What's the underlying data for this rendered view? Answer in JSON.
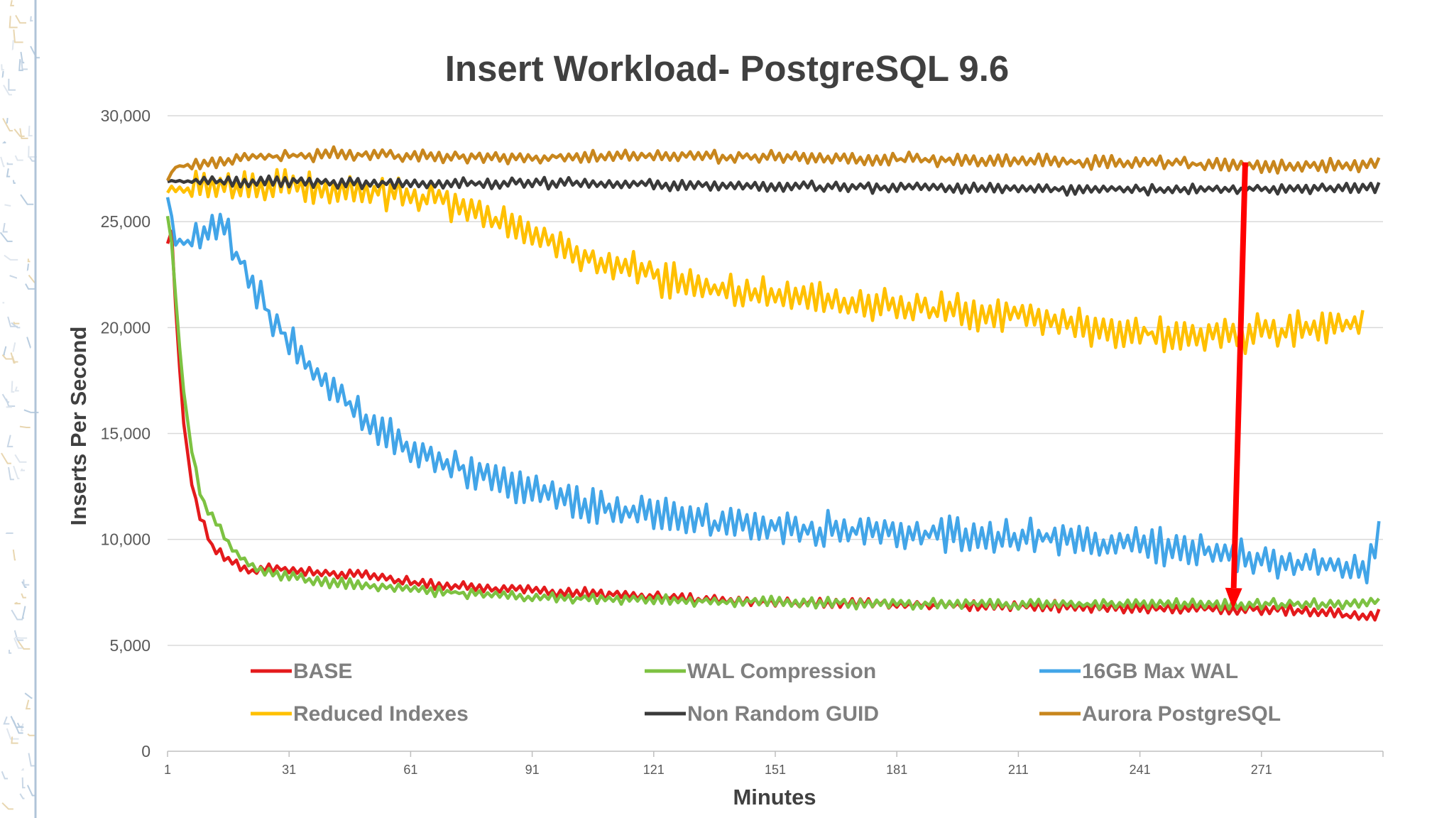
{
  "chart_data": {
    "type": "line",
    "title": "Insert Workload- PostgreSQL 9.6",
    "xlabel": "Minutes",
    "ylabel": "Inserts Per Second",
    "xlim": [
      1,
      301
    ],
    "ylim": [
      0,
      30000
    ],
    "x_ticks": [
      "1",
      "31",
      "61",
      "91",
      "121",
      "151",
      "181",
      "211",
      "241",
      "271"
    ],
    "y_ticks": [
      "0",
      "5,000",
      "10,000",
      "15,000",
      "20,000",
      "25,000",
      "30,000"
    ],
    "grid": "horizontal",
    "legend_placement": "bottom inside plot",
    "series": [
      {
        "name": "BASE",
        "color": "#e41a1c",
        "points": [
          [
            1,
            24000
          ],
          [
            2,
            24500
          ],
          [
            3,
            21000
          ],
          [
            4,
            18000
          ],
          [
            5,
            15500
          ],
          [
            6,
            14000
          ],
          [
            7,
            12800
          ],
          [
            8,
            11800
          ],
          [
            9,
            11000
          ],
          [
            10,
            10600
          ],
          [
            12,
            9600
          ],
          [
            14,
            9300
          ],
          [
            16,
            9000
          ],
          [
            18,
            8900
          ],
          [
            20,
            8600
          ],
          [
            22,
            8400
          ],
          [
            25,
            8700
          ],
          [
            30,
            8600
          ],
          [
            40,
            8400
          ],
          [
            50,
            8300
          ],
          [
            60,
            8000
          ],
          [
            70,
            7800
          ],
          [
            80,
            7700
          ],
          [
            90,
            7600
          ],
          [
            100,
            7500
          ],
          [
            110,
            7400
          ],
          [
            120,
            7300
          ],
          [
            130,
            7200
          ],
          [
            140,
            7100
          ],
          [
            150,
            7050
          ],
          [
            160,
            7000
          ],
          [
            170,
            7000
          ],
          [
            180,
            6950
          ],
          [
            190,
            6900
          ],
          [
            200,
            6900
          ],
          [
            210,
            6850
          ],
          [
            220,
            6850
          ],
          [
            230,
            6800
          ],
          [
            240,
            6750
          ],
          [
            250,
            6750
          ],
          [
            260,
            6700
          ],
          [
            270,
            6700
          ],
          [
            280,
            6650
          ],
          [
            290,
            6500
          ],
          [
            295,
            6300
          ],
          [
            300,
            6500
          ]
        ],
        "noise": 220
      },
      {
        "name": "WAL  Compression",
        "color": "#7dc242",
        "points": [
          [
            1,
            25300
          ],
          [
            2,
            24000
          ],
          [
            3,
            21500
          ],
          [
            4,
            19000
          ],
          [
            5,
            17000
          ],
          [
            6,
            15500
          ],
          [
            7,
            14300
          ],
          [
            8,
            13200
          ],
          [
            9,
            12300
          ],
          [
            10,
            11700
          ],
          [
            12,
            11100
          ],
          [
            14,
            10400
          ],
          [
            16,
            9800
          ],
          [
            18,
            9300
          ],
          [
            20,
            9000
          ],
          [
            22,
            8700
          ],
          [
            25,
            8500
          ],
          [
            30,
            8300
          ],
          [
            40,
            8000
          ],
          [
            50,
            7800
          ],
          [
            60,
            7700
          ],
          [
            70,
            7500
          ],
          [
            80,
            7400
          ],
          [
            90,
            7300
          ],
          [
            100,
            7250
          ],
          [
            110,
            7200
          ],
          [
            120,
            7150
          ],
          [
            130,
            7100
          ],
          [
            140,
            7050
          ],
          [
            150,
            7050
          ],
          [
            160,
            7000
          ],
          [
            170,
            7000
          ],
          [
            180,
            6950
          ],
          [
            190,
            6950
          ],
          [
            200,
            6950
          ],
          [
            210,
            6950
          ],
          [
            220,
            6950
          ],
          [
            230,
            6950
          ],
          [
            240,
            6950
          ],
          [
            250,
            6950
          ],
          [
            260,
            6950
          ],
          [
            270,
            6950
          ],
          [
            280,
            6950
          ],
          [
            290,
            6950
          ],
          [
            300,
            7100
          ]
        ],
        "noise": 230
      },
      {
        "name": "16GB Max WAL",
        "color": "#42a5e8",
        "points": [
          [
            1,
            26300
          ],
          [
            3,
            24000
          ],
          [
            6,
            24000
          ],
          [
            10,
            24500
          ],
          [
            13,
            25000
          ],
          [
            15,
            25000
          ],
          [
            18,
            23500
          ],
          [
            20,
            22800
          ],
          [
            25,
            21000
          ],
          [
            30,
            19500
          ],
          [
            35,
            18500
          ],
          [
            40,
            17500
          ],
          [
            45,
            16600
          ],
          [
            50,
            15700
          ],
          [
            55,
            15000
          ],
          [
            60,
            14300
          ],
          [
            70,
            13600
          ],
          [
            80,
            13000
          ],
          [
            90,
            12400
          ],
          [
            100,
            11800
          ],
          [
            110,
            11500
          ],
          [
            120,
            11200
          ],
          [
            130,
            10950
          ],
          [
            140,
            10800
          ],
          [
            150,
            10650
          ],
          [
            160,
            10500
          ],
          [
            170,
            10400
          ],
          [
            180,
            10300
          ],
          [
            190,
            10250
          ],
          [
            200,
            10200
          ],
          [
            210,
            10100
          ],
          [
            220,
            10050
          ],
          [
            230,
            9950
          ],
          [
            240,
            9800
          ],
          [
            250,
            9600
          ],
          [
            260,
            9400
          ],
          [
            270,
            9100
          ],
          [
            280,
            8900
          ],
          [
            290,
            8800
          ],
          [
            297,
            8700
          ],
          [
            300,
            10000
          ]
        ],
        "noise": 750
      },
      {
        "name": "Reduced Indexes",
        "color": "#ffc000",
        "points": [
          [
            1,
            26500
          ],
          [
            5,
            26500
          ],
          [
            15,
            26600
          ],
          [
            30,
            26600
          ],
          [
            50,
            26500
          ],
          [
            70,
            26000
          ],
          [
            80,
            25300
          ],
          [
            90,
            24500
          ],
          [
            100,
            23800
          ],
          [
            110,
            23000
          ],
          [
            120,
            22500
          ],
          [
            130,
            22000
          ],
          [
            140,
            21800
          ],
          [
            150,
            21500
          ],
          [
            160,
            21300
          ],
          [
            170,
            21100
          ],
          [
            180,
            21000
          ],
          [
            190,
            20800
          ],
          [
            200,
            20700
          ],
          [
            210,
            20600
          ],
          [
            220,
            20400
          ],
          [
            230,
            20000
          ],
          [
            240,
            19800
          ],
          [
            250,
            19600
          ],
          [
            260,
            19600
          ],
          [
            270,
            19700
          ],
          [
            280,
            19900
          ],
          [
            290,
            20000
          ],
          [
            296,
            20100
          ]
        ],
        "noise": 750
      },
      {
        "name": "Non Random GUID",
        "color": "#3a3a3a",
        "points": [
          [
            1,
            26900
          ],
          [
            20,
            26900
          ],
          [
            60,
            26800
          ],
          [
            100,
            26800
          ],
          [
            140,
            26700
          ],
          [
            180,
            26600
          ],
          [
            220,
            26550
          ],
          [
            260,
            26500
          ],
          [
            300,
            26600
          ]
        ],
        "noise": 230
      },
      {
        "name": "Aurora PostgreSQL",
        "color": "#c8861d",
        "points": [
          [
            1,
            27000
          ],
          [
            3,
            27600
          ],
          [
            20,
            28000
          ],
          [
            40,
            28200
          ],
          [
            60,
            28100
          ],
          [
            80,
            28000
          ],
          [
            120,
            28100
          ],
          [
            160,
            28000
          ],
          [
            200,
            27900
          ],
          [
            240,
            27800
          ],
          [
            280,
            27600
          ],
          [
            300,
            27700
          ]
        ],
        "noise": 280
      }
    ],
    "annotations": [
      {
        "type": "arrow",
        "color": "#ff0000",
        "description": "downward red arrow",
        "from": [
          267,
          27800
        ],
        "to": [
          264,
          6700
        ]
      }
    ]
  }
}
